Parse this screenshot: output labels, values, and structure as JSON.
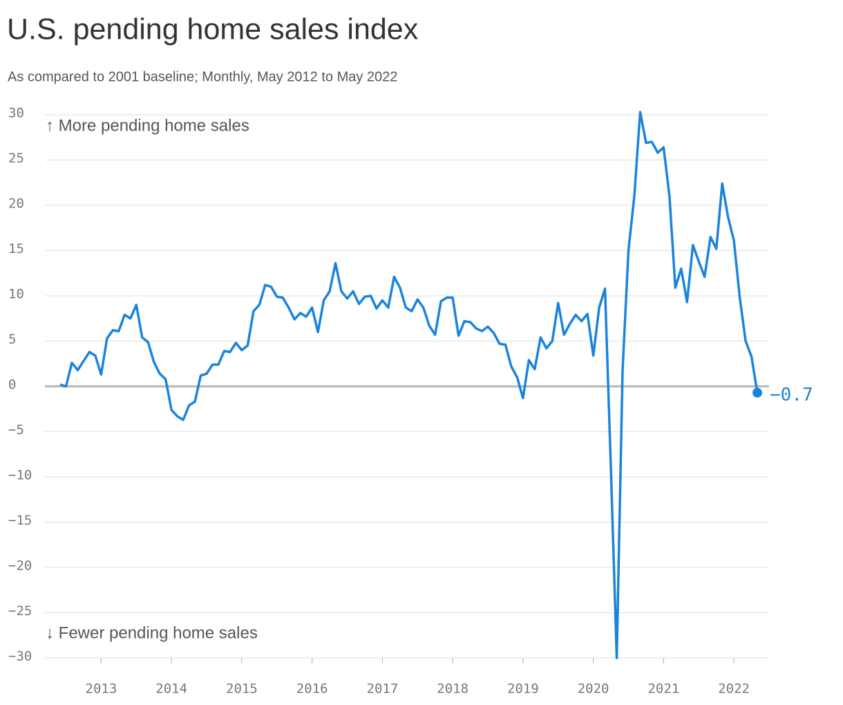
{
  "chart_data": {
    "type": "line",
    "title": "U.S. pending home sales index",
    "subtitle": "As compared to 2001 baseline; Monthly, May 2012 to May 2022",
    "annotations": [
      "↑ More pending home sales",
      "↓ Fewer pending home sales"
    ],
    "end_label": "−0.7",
    "x": [
      "2012-06",
      "2012-07",
      "2012-08",
      "2012-09",
      "2012-10",
      "2012-11",
      "2012-12",
      "2013-01",
      "2013-02",
      "2013-03",
      "2013-04",
      "2013-05",
      "2013-06",
      "2013-07",
      "2013-08",
      "2013-09",
      "2013-10",
      "2013-11",
      "2013-12",
      "2014-01",
      "2014-02",
      "2014-03",
      "2014-04",
      "2014-05",
      "2014-06",
      "2014-07",
      "2014-08",
      "2014-09",
      "2014-10",
      "2014-11",
      "2014-12",
      "2015-01",
      "2015-02",
      "2015-03",
      "2015-04",
      "2015-05",
      "2015-06",
      "2015-07",
      "2015-08",
      "2015-09",
      "2015-10",
      "2015-11",
      "2015-12",
      "2016-01",
      "2016-02",
      "2016-03",
      "2016-04",
      "2016-05",
      "2016-06",
      "2016-07",
      "2016-08",
      "2016-09",
      "2016-10",
      "2016-11",
      "2016-12",
      "2017-01",
      "2017-02",
      "2017-03",
      "2017-04",
      "2017-05",
      "2017-06",
      "2017-07",
      "2017-08",
      "2017-09",
      "2017-10",
      "2017-11",
      "2017-12",
      "2018-01",
      "2018-02",
      "2018-03",
      "2018-04",
      "2018-05",
      "2018-06",
      "2018-07",
      "2018-08",
      "2018-09",
      "2018-10",
      "2018-11",
      "2018-12",
      "2019-01",
      "2019-02",
      "2019-03",
      "2019-04",
      "2019-05",
      "2019-06",
      "2019-07",
      "2019-08",
      "2019-09",
      "2019-10",
      "2019-11",
      "2019-12",
      "2020-01",
      "2020-02",
      "2020-03",
      "2020-04",
      "2020-05",
      "2020-06",
      "2020-07",
      "2020-08",
      "2020-09",
      "2020-10",
      "2020-11",
      "2020-12",
      "2021-01",
      "2021-02",
      "2021-03",
      "2021-04",
      "2021-05",
      "2021-06",
      "2021-07",
      "2021-08",
      "2021-09",
      "2021-10",
      "2021-11",
      "2021-12",
      "2022-01",
      "2022-02",
      "2022-03",
      "2022-04",
      "2022-05"
    ],
    "series": [
      {
        "color": "#1a84dc",
        "values": [
          0.2,
          0,
          2.6,
          1.8,
          2.8,
          3.8,
          3.4,
          1.3,
          5.3,
          6.2,
          6.1,
          7.9,
          7.5,
          9.0,
          5.4,
          4.9,
          2.7,
          1.4,
          0.8,
          -2.6,
          -3.3,
          -3.7,
          -2.1,
          -1.7,
          1.2,
          1.4,
          2.4,
          2.4,
          3.9,
          3.8,
          4.8,
          4.0,
          4.5,
          8.3,
          9.0,
          11.2,
          11.0,
          9.9,
          9.8,
          8.7,
          7.4,
          8.1,
          7.7,
          8.7,
          6.0,
          9.5,
          10.5,
          13.6,
          10.5,
          9.7,
          10.5,
          9.1,
          9.9,
          10.0,
          8.6,
          9.5,
          8.7,
          12.1,
          10.9,
          8.7,
          8.3,
          9.6,
          8.7,
          6.7,
          5.7,
          9.4,
          9.8,
          9.8,
          5.6,
          7.2,
          7.1,
          6.4,
          6.1,
          6.6,
          5.9,
          4.7,
          4.6,
          2.2,
          1.0,
          -1.3,
          2.9,
          1.9,
          5.4,
          4.2,
          5.0,
          9.2,
          5.7,
          6.9,
          7.9,
          7.2,
          8.0,
          3.4,
          8.7,
          10.8,
          -9,
          -30,
          1.8,
          15.0,
          21.0,
          30.3,
          26.9,
          27.0,
          25.8,
          26.4,
          21.0,
          10.9,
          13.0,
          9.3,
          15.6,
          13.8,
          12.1,
          16.5,
          15.2,
          22.4,
          18.7,
          16.1,
          9.8,
          5.0,
          3.3,
          -0.7
        ]
      }
    ],
    "xlim": [
      2012.2,
      2022.5
    ],
    "xticks": [
      2013,
      2014,
      2015,
      2016,
      2017,
      2018,
      2019,
      2020,
      2021,
      2022
    ],
    "ylim": [
      -30,
      30
    ],
    "yticks": [
      {
        "value": -30,
        "label": "−30"
      },
      {
        "value": -25,
        "label": "−25"
      },
      {
        "value": -20,
        "label": "−20"
      },
      {
        "value": -15,
        "label": "−15"
      },
      {
        "value": -10,
        "label": "−10"
      },
      {
        "value": -5,
        "label": "−5"
      },
      0,
      5,
      10,
      15,
      20,
      25,
      30
    ],
    "grid": true
  }
}
